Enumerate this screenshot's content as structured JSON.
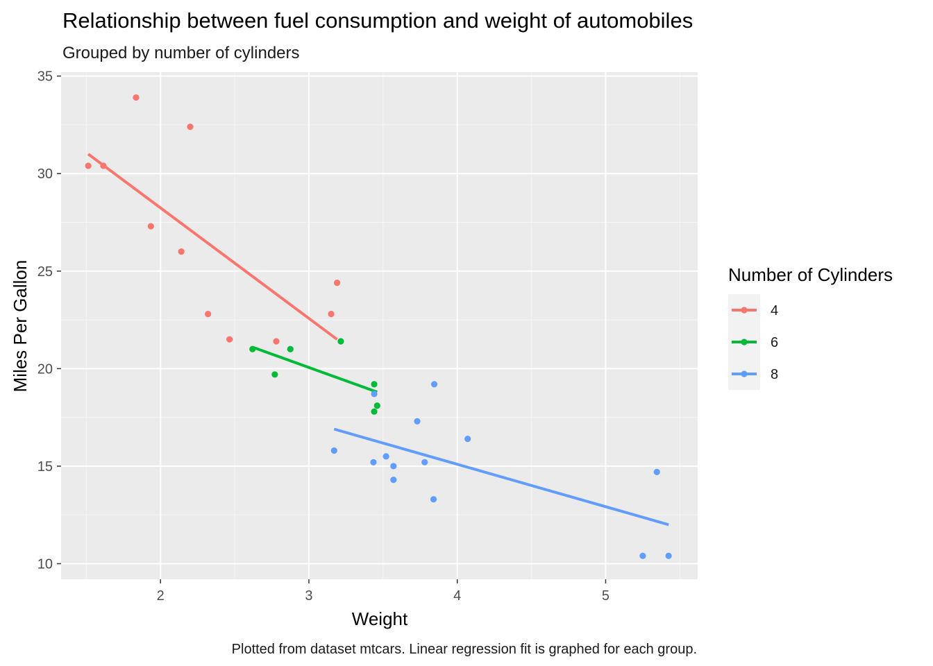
{
  "chart_data": {
    "type": "scatter",
    "title": "Relationship between fuel consumption and weight of automobiles",
    "subtitle": "Grouped by number of cylinders",
    "caption": "Plotted from dataset mtcars. Linear regression fit is graphed for each group.",
    "xlabel": "Weight",
    "ylabel": "Miles Per Gallon",
    "xlim": [
      1.33,
      5.62
    ],
    "ylim": [
      9.2,
      35.2
    ],
    "x_ticks": [
      2,
      3,
      4,
      5
    ],
    "x_tick_labels": [
      "2",
      "3",
      "4",
      "5"
    ],
    "y_ticks": [
      10,
      15,
      20,
      25,
      30,
      35
    ],
    "y_tick_labels": [
      "10",
      "15",
      "20",
      "25",
      "30",
      "35"
    ],
    "grid": true,
    "legend": {
      "title": "Number of Cylinders",
      "position": "right"
    },
    "series": [
      {
        "name": "4",
        "color": "#F8766D",
        "points": [
          [
            2.32,
            22.8
          ],
          [
            3.19,
            24.4
          ],
          [
            3.15,
            22.8
          ],
          [
            2.2,
            32.4
          ],
          [
            1.615,
            30.4
          ],
          [
            1.835,
            33.9
          ],
          [
            2.465,
            21.5
          ],
          [
            1.935,
            27.3
          ],
          [
            2.14,
            26.0
          ],
          [
            1.513,
            30.4
          ],
          [
            2.78,
            21.4
          ]
        ],
        "fit": [
          [
            1.513,
            31.0
          ],
          [
            3.19,
            21.5
          ]
        ]
      },
      {
        "name": "6",
        "color": "#00BA38",
        "points": [
          [
            2.62,
            21.0
          ],
          [
            2.875,
            21.0
          ],
          [
            3.215,
            21.4
          ],
          [
            3.46,
            18.1
          ],
          [
            3.44,
            19.2
          ],
          [
            3.44,
            17.8
          ],
          [
            2.77,
            19.7
          ]
        ],
        "fit": [
          [
            2.62,
            21.1
          ],
          [
            3.46,
            18.8
          ]
        ]
      },
      {
        "name": "8",
        "color": "#619CFF",
        "points": [
          [
            3.44,
            18.7
          ],
          [
            3.57,
            14.3
          ],
          [
            4.07,
            16.4
          ],
          [
            3.73,
            17.3
          ],
          [
            3.78,
            15.2
          ],
          [
            5.25,
            10.4
          ],
          [
            5.424,
            10.4
          ],
          [
            5.345,
            14.7
          ],
          [
            3.52,
            15.5
          ],
          [
            3.435,
            15.2
          ],
          [
            3.84,
            13.3
          ],
          [
            3.845,
            19.2
          ],
          [
            3.17,
            15.8
          ],
          [
            3.57,
            15.0
          ]
        ],
        "fit": [
          [
            3.17,
            16.9
          ],
          [
            5.424,
            12.0
          ]
        ]
      }
    ]
  }
}
